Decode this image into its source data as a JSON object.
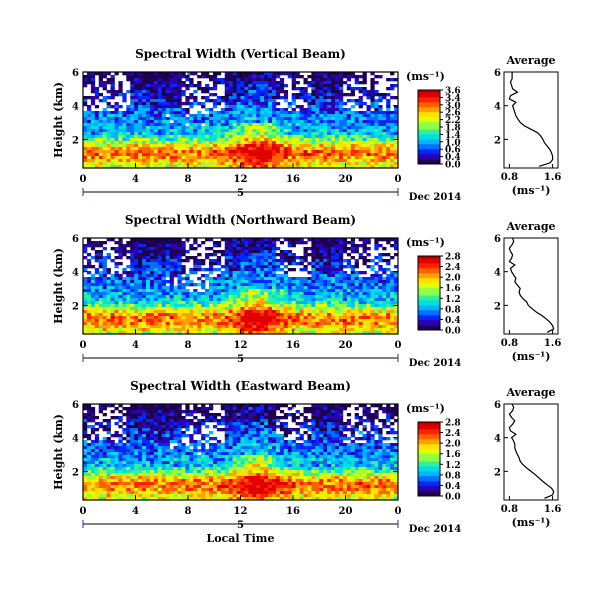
{
  "colormap": [
    "#1e0050",
    "#2a00b0",
    "#0028ff",
    "#0070ff",
    "#00b4ff",
    "#00e0e0",
    "#30f0a0",
    "#90ff40",
    "#e0ff00",
    "#ffe000",
    "#ffa000",
    "#ff6000",
    "#ff2000",
    "#e00000",
    "#b00000"
  ],
  "chart_data": [
    {
      "type": "heatmap",
      "title": "Spectral Width (Vertical Beam)",
      "ylabel": "Height (km)",
      "xlabel": "",
      "date_label": "Dec 2014",
      "day_label": "5",
      "x_ticks": [
        "0",
        "4",
        "8",
        "12",
        "16",
        "20",
        "0"
      ],
      "y_ticks": [
        "2",
        "4",
        "6"
      ],
      "xlim": [
        0,
        24
      ],
      "ylim": [
        0.3,
        6
      ],
      "colorbar": {
        "label": "(ms⁻¹)",
        "ticks": [
          "3.6",
          "3.4",
          "3.0",
          "2.6",
          "2.2",
          "1.8",
          "1.4",
          "1.0",
          "0.6",
          "0.4",
          "0.0"
        ],
        "range": [
          0,
          3.6
        ]
      },
      "average_profile": {
        "title": "Average",
        "xlabel": "(ms⁻¹)",
        "x_ticks": [
          "0.8",
          "1.6"
        ],
        "y_ticks": [
          "2",
          "4",
          "6"
        ],
        "xlim": [
          0.7,
          1.7
        ],
        "height": [
          0.4,
          0.6,
          0.8,
          1.0,
          1.2,
          1.4,
          1.6,
          1.8,
          2.0,
          2.2,
          2.4,
          2.6,
          2.8,
          3.0,
          3.2,
          3.4,
          3.6,
          3.8,
          4.0,
          4.2,
          4.4,
          4.6,
          4.8,
          5.0,
          5.2,
          5.4,
          5.6,
          5.8,
          6.0
        ],
        "width": [
          1.35,
          1.55,
          1.6,
          1.6,
          1.58,
          1.55,
          1.5,
          1.45,
          1.42,
          1.38,
          1.32,
          1.2,
          1.08,
          1.0,
          0.96,
          0.92,
          0.9,
          0.88,
          0.86,
          0.92,
          0.8,
          0.82,
          0.95,
          0.86,
          0.84,
          0.82,
          0.85,
          0.85,
          0.85
        ]
      }
    },
    {
      "type": "heatmap",
      "title": "Spectral Width (Northward Beam)",
      "ylabel": "Height (km)",
      "xlabel": "",
      "date_label": "Dec 2014",
      "day_label": "5",
      "x_ticks": [
        "0",
        "4",
        "8",
        "12",
        "16",
        "20",
        "0"
      ],
      "y_ticks": [
        "2",
        "4",
        "6"
      ],
      "xlim": [
        0,
        24
      ],
      "ylim": [
        0.3,
        6
      ],
      "colorbar": {
        "label": "(ms⁻¹)",
        "ticks": [
          "2.8",
          "2.4",
          "2.0",
          "1.6",
          "1.2",
          "0.8",
          "0.4",
          "0.0"
        ],
        "range": [
          0,
          2.8
        ]
      },
      "average_profile": {
        "title": "Average",
        "xlabel": "(ms⁻¹)",
        "x_ticks": [
          "0.8",
          "1.6"
        ],
        "y_ticks": [
          "2",
          "4",
          "6"
        ],
        "xlim": [
          0.7,
          1.7
        ],
        "height": [
          0.4,
          0.6,
          0.8,
          1.0,
          1.2,
          1.4,
          1.6,
          1.8,
          2.0,
          2.2,
          2.4,
          2.6,
          2.8,
          3.0,
          3.2,
          3.4,
          3.6,
          3.8,
          4.0,
          4.2,
          4.4,
          4.6,
          4.8,
          5.0,
          5.2,
          5.4,
          5.6,
          5.8,
          6.0
        ],
        "width": [
          1.5,
          1.62,
          1.6,
          1.55,
          1.48,
          1.4,
          1.3,
          1.22,
          1.15,
          1.12,
          1.05,
          1.0,
          0.98,
          1.0,
          0.95,
          0.9,
          0.92,
          0.88,
          0.84,
          0.82,
          0.9,
          0.8,
          0.84,
          0.86,
          0.82,
          0.8,
          0.85,
          0.88,
          0.86
        ]
      }
    },
    {
      "type": "heatmap",
      "title": "Spectral Width (Eastward Beam)",
      "ylabel": "Height (km)",
      "xlabel": "Local Time",
      "date_label": "Dec 2014",
      "day_label": "5",
      "x_ticks": [
        "0",
        "4",
        "8",
        "12",
        "16",
        "20",
        "0"
      ],
      "y_ticks": [
        "2",
        "4",
        "6"
      ],
      "xlim": [
        0,
        24
      ],
      "ylim": [
        0.3,
        6
      ],
      "colorbar": {
        "label": "(ms⁻¹)",
        "ticks": [
          "2.8",
          "2.4",
          "2.0",
          "1.6",
          "1.2",
          "0.8",
          "0.4",
          "0.0"
        ],
        "range": [
          0,
          2.8
        ]
      },
      "average_profile": {
        "title": "Average",
        "xlabel": "(ms⁻¹)",
        "x_ticks": [
          "0.8",
          "1.6"
        ],
        "y_ticks": [
          "2",
          "4",
          "6"
        ],
        "xlim": [
          0.7,
          1.7
        ],
        "height": [
          0.4,
          0.6,
          0.8,
          1.0,
          1.2,
          1.4,
          1.6,
          1.8,
          2.0,
          2.2,
          2.4,
          2.6,
          2.8,
          3.0,
          3.2,
          3.4,
          3.6,
          3.8,
          4.0,
          4.2,
          4.4,
          4.6,
          4.8,
          5.0,
          5.2,
          5.4,
          5.6,
          5.8,
          6.0
        ],
        "width": [
          1.45,
          1.6,
          1.62,
          1.58,
          1.5,
          1.42,
          1.35,
          1.28,
          1.2,
          1.12,
          1.05,
          1.0,
          0.98,
          0.95,
          0.92,
          0.9,
          0.9,
          0.88,
          0.84,
          0.92,
          0.82,
          0.8,
          0.86,
          0.9,
          0.84,
          0.8,
          0.86,
          0.88,
          0.85
        ]
      }
    }
  ]
}
